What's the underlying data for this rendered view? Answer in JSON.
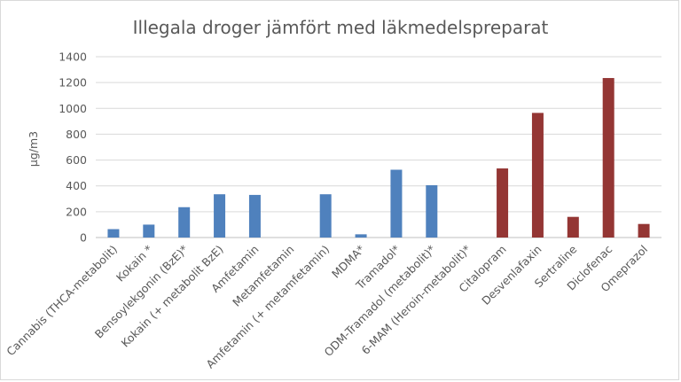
{
  "chart_data": {
    "type": "bar",
    "title": "Illegala droger jämfört med läkmedelspreparat",
    "xlabel": "",
    "ylabel": "µg/m3",
    "ylim": [
      0,
      1400
    ],
    "yticks": [
      0,
      200,
      400,
      600,
      800,
      1000,
      1200,
      1400
    ],
    "grid": true,
    "legend": "none",
    "categories": [
      "Cannabis (THCA-metabolit)",
      "Kokain *",
      "Bensoylekgonin (BzE)*",
      "Kokain (+ metabolit BzE)",
      "Amfetamin",
      "Metamfetamin",
      "Amfetamin (+ metamfetamin)",
      "MDMA*",
      "Tramadol*",
      "ODM-Tramadol (metabolit)*",
      "6-MAM (Heroin-metabolit)*",
      "Citalopram",
      "Desvenlafaxin",
      "Sertraline",
      "Diclofenac",
      "Omeprazol"
    ],
    "values": [
      65,
      100,
      235,
      335,
      330,
      0,
      335,
      25,
      525,
      405,
      0,
      535,
      965,
      160,
      1235,
      105
    ],
    "colors": [
      "#4f81bd",
      "#4f81bd",
      "#4f81bd",
      "#4f81bd",
      "#4f81bd",
      "#4f81bd",
      "#4f81bd",
      "#4f81bd",
      "#4f81bd",
      "#4f81bd",
      "#4f81bd",
      "#943634",
      "#943634",
      "#943634",
      "#943634",
      "#943634"
    ]
  }
}
